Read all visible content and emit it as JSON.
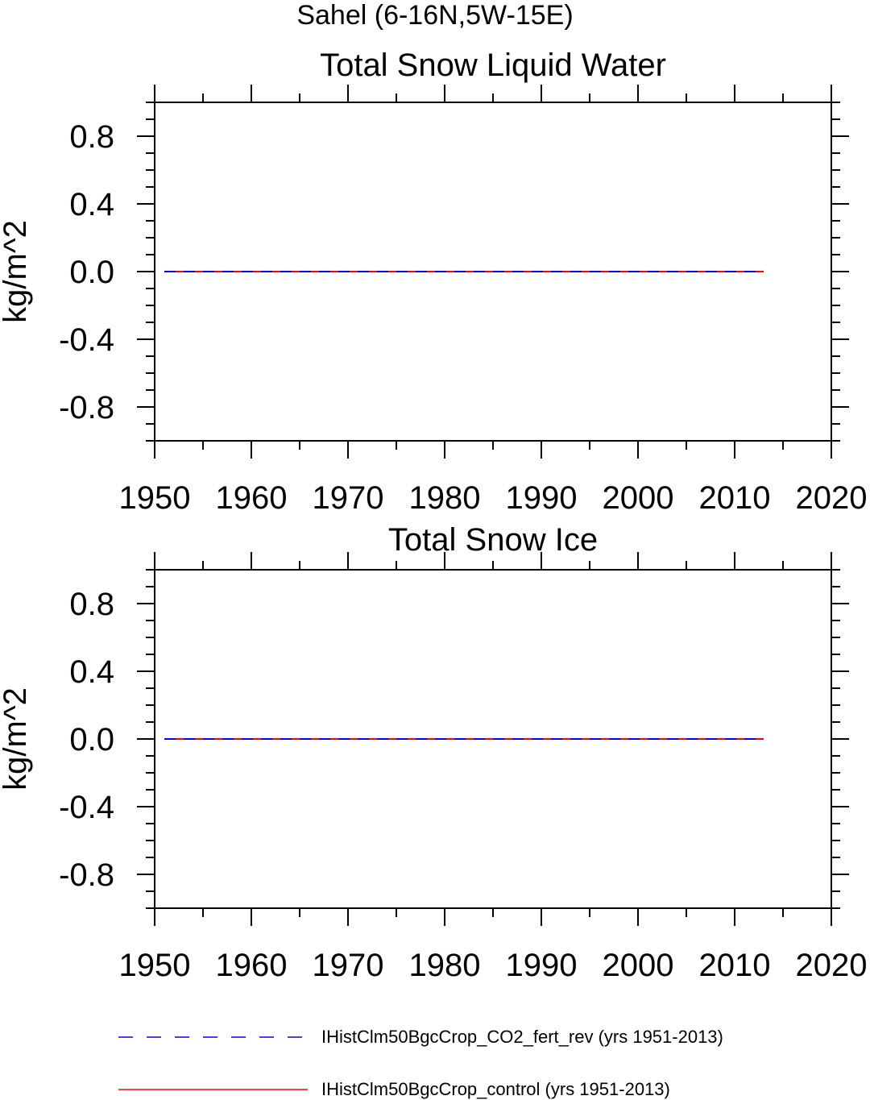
{
  "suptitle": "Sahel (6-16N,5W-15E)",
  "colors": {
    "axis": "#000000",
    "series_dashed": "#0000ff",
    "series_solid": "#ff0000"
  },
  "chart_data": [
    {
      "type": "line",
      "title": "Total Snow Liquid Water",
      "xlabel": "",
      "ylabel": "kg/m^2",
      "xlim": [
        1950,
        2020
      ],
      "ylim": [
        -1.0,
        1.0
      ],
      "x_ticks": [
        1950,
        1960,
        1970,
        1980,
        1990,
        2000,
        2010,
        2020
      ],
      "x_tick_labels": [
        "1950",
        "1960",
        "1970",
        "1980",
        "1990",
        "2000",
        "2010",
        "2020"
      ],
      "y_ticks": [
        0.8,
        0.4,
        0.0,
        -0.4,
        -0.8
      ],
      "y_tick_labels": [
        "0.8",
        "0.4",
        "0.0",
        "-0.4",
        "-0.8"
      ],
      "series": [
        {
          "name": "IHistClm50BgcCrop_CO2_fert_rev (yrs 1951-2013)",
          "style": "dashed",
          "color": "#0000ff",
          "x": [
            1951,
            2013
          ],
          "y": [
            0.0,
            0.0
          ]
        },
        {
          "name": "IHistClm50BgcCrop_control (yrs 1951-2013)",
          "style": "solid",
          "color": "#ff0000",
          "x": [
            1951,
            2013
          ],
          "y": [
            0.0,
            0.0
          ]
        }
      ]
    },
    {
      "type": "line",
      "title": "Total Snow Ice",
      "xlabel": "",
      "ylabel": "kg/m^2",
      "xlim": [
        1950,
        2020
      ],
      "ylim": [
        -1.0,
        1.0
      ],
      "x_ticks": [
        1950,
        1960,
        1970,
        1980,
        1990,
        2000,
        2010,
        2020
      ],
      "x_tick_labels": [
        "1950",
        "1960",
        "1970",
        "1980",
        "1990",
        "2000",
        "2010",
        "2020"
      ],
      "y_ticks": [
        0.8,
        0.4,
        0.0,
        -0.4,
        -0.8
      ],
      "y_tick_labels": [
        "0.8",
        "0.4",
        "0.0",
        "-0.4",
        "-0.8"
      ],
      "series": [
        {
          "name": "IHistClm50BgcCrop_CO2_fert_rev (yrs 1951-2013)",
          "style": "dashed",
          "color": "#0000ff",
          "x": [
            1951,
            2013
          ],
          "y": [
            0.0,
            0.0
          ]
        },
        {
          "name": "IHistClm50BgcCrop_control (yrs 1951-2013)",
          "style": "solid",
          "color": "#ff0000",
          "x": [
            1951,
            2013
          ],
          "y": [
            0.0,
            0.0
          ]
        }
      ]
    }
  ],
  "legend": {
    "entries": [
      {
        "label": "IHistClm50BgcCrop_CO2_fert_rev (yrs 1951-2013)",
        "style": "dashed",
        "color": "#0000ff"
      },
      {
        "label": "IHistClm50BgcCrop_control (yrs 1951-2013)",
        "style": "solid",
        "color": "#ff0000"
      }
    ]
  }
}
